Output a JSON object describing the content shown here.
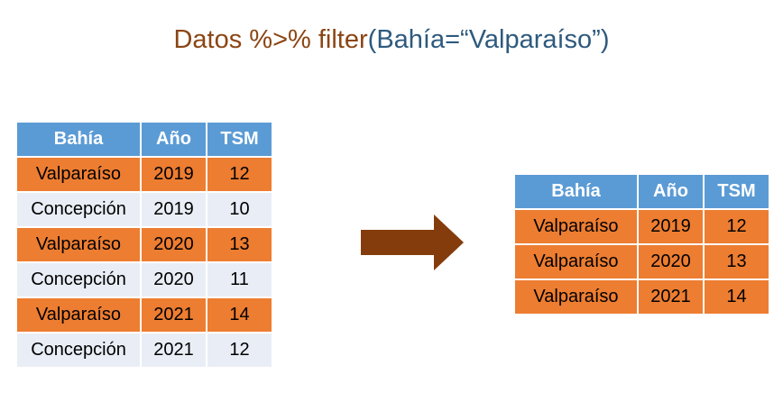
{
  "title": {
    "part1": "Datos %>% filter",
    "part2": "(Bahía=“Valparaíso”)"
  },
  "colors": {
    "header_bg": "#5b9bd5",
    "highlight_row": "#ed7d31",
    "plain_row": "#e9eef6",
    "arrow": "#843c0c",
    "title_code": "#8b4513",
    "title_arg": "#2e5a7e"
  },
  "input_table": {
    "headers": [
      "Bahía",
      "Año",
      "TSM"
    ],
    "rows": [
      {
        "cells": [
          "Valparaíso",
          "2019",
          "12"
        ],
        "highlight": true
      },
      {
        "cells": [
          "Concepción",
          "2019",
          "10"
        ],
        "highlight": false
      },
      {
        "cells": [
          "Valparaíso",
          "2020",
          "13"
        ],
        "highlight": true
      },
      {
        "cells": [
          "Concepción",
          "2020",
          "11"
        ],
        "highlight": false
      },
      {
        "cells": [
          "Valparaíso",
          "2021",
          "14"
        ],
        "highlight": true
      },
      {
        "cells": [
          "Concepción",
          "2021",
          "12"
        ],
        "highlight": false
      }
    ]
  },
  "output_table": {
    "headers": [
      "Bahía",
      "Año",
      "TSM"
    ],
    "rows": [
      {
        "cells": [
          "Valparaíso",
          "2019",
          "12"
        ],
        "highlight": true
      },
      {
        "cells": [
          "Valparaíso",
          "2020",
          "13"
        ],
        "highlight": true
      },
      {
        "cells": [
          "Valparaíso",
          "2021",
          "14"
        ],
        "highlight": true
      }
    ]
  },
  "arrow_icon": "right-arrow-icon"
}
